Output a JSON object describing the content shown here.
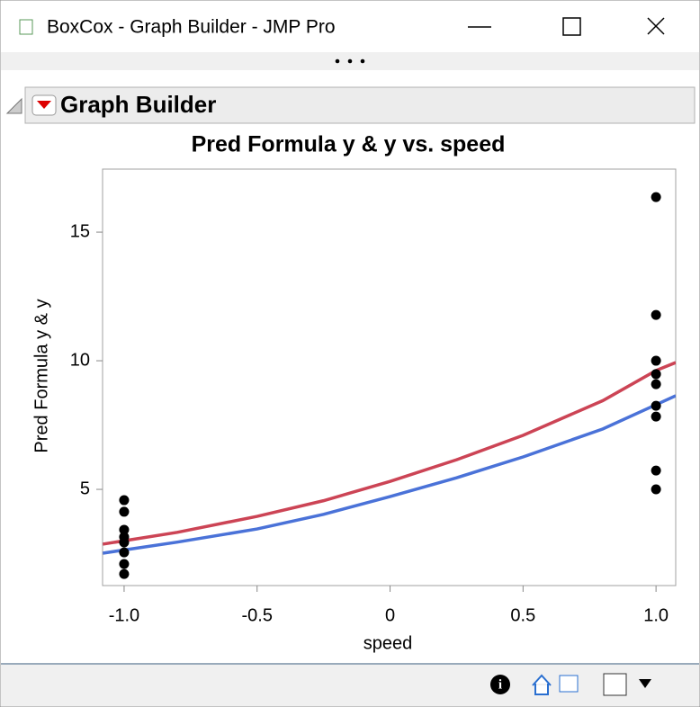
{
  "window": {
    "title": "BoxCox - Graph Builder - JMP Pro"
  },
  "panel": {
    "title": "Graph Builder"
  },
  "chart_data": {
    "type": "scatter",
    "title": "Pred Formula y & y vs. speed",
    "x_label": "speed",
    "y_label": "Pred Formula y & y",
    "xlim": [
      -1.081,
      1.074
    ],
    "ylim": [
      1.26,
      17.45
    ],
    "xticks": [
      {
        "value": -1,
        "label": "-1.0"
      },
      -0.5,
      0,
      0.5,
      {
        "value": 1,
        "label": "1.0"
      }
    ],
    "yticks": [
      5,
      10,
      15
    ],
    "grid": false,
    "series": [
      {
        "type": "scatter",
        "color": "#000000",
        "x": [
          -1,
          -1,
          -1,
          -1,
          -1,
          -1,
          -1,
          -1,
          1,
          1,
          1,
          1,
          1,
          1,
          1,
          1,
          1
        ],
        "values": [
          4.58,
          4.13,
          3.43,
          3.15,
          2.94,
          2.55,
          2.1,
          1.71,
          16.36,
          11.78,
          10.0,
          9.48,
          9.09,
          8.25,
          7.83,
          5.73,
          5.0
        ]
      },
      {
        "type": "line",
        "color": "#cc4455",
        "x": [
          -1.08,
          -0.8,
          -0.5,
          -0.25,
          0,
          0.25,
          0.5,
          0.8,
          1,
          1.074
        ],
        "values": [
          2.87,
          3.33,
          3.95,
          4.56,
          5.31,
          6.15,
          7.1,
          8.45,
          9.62,
          9.93
        ]
      },
      {
        "type": "line",
        "color": "#4a72d8",
        "x": [
          -1.08,
          -0.8,
          -0.5,
          -0.25,
          0,
          0.25,
          0.5,
          0.8,
          1,
          1.074
        ],
        "values": [
          2.52,
          2.95,
          3.46,
          4.03,
          4.72,
          5.45,
          6.26,
          7.35,
          8.29,
          8.64
        ]
      }
    ]
  }
}
